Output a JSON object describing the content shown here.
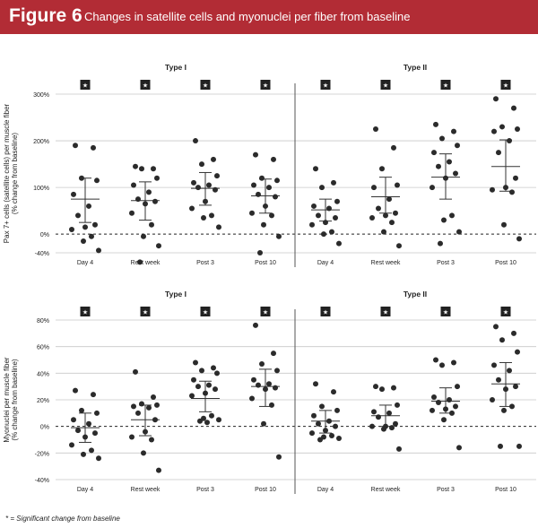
{
  "header": {
    "figure_label": "Figure 6",
    "title": "Changes in satellite cells and myonuclei per fiber from baseline"
  },
  "footnote": "* = Significant change from baseline",
  "colors": {
    "banner": "#b22c35",
    "dots": "#2b2b2b",
    "grid": "#c8c8c8",
    "text": "#222222"
  },
  "chart_data": [
    {
      "type": "scatter",
      "title": "Pax 7+ cells (satellite cells) per muscle fiber",
      "ylabel_line1": "Pax 7+ cells (satellite cells) per muscle fiber",
      "ylabel_line2": "(% change from baseline)",
      "ylim": [
        -40,
        300
      ],
      "yticks": [
        -40,
        0,
        100,
        200,
        300
      ],
      "ytick_labels": [
        "-40%",
        "0%",
        "100%",
        "200%",
        "300%"
      ],
      "group_labels": [
        "Type I",
        "Type II"
      ],
      "categories": [
        "Day 4",
        "Rest week",
        "Post 3",
        "Post 10",
        "Day 4",
        "Rest week",
        "Post 3",
        "Post 10"
      ],
      "significant": [
        true,
        true,
        true,
        true,
        true,
        true,
        true,
        true
      ],
      "star_symbol": "★",
      "means": [
        75,
        72,
        98,
        82,
        52,
        80,
        122,
        145
      ],
      "error_bars": [
        [
          25,
          120
        ],
        [
          30,
          112
        ],
        [
          62,
          132
        ],
        [
          45,
          118
        ],
        [
          28,
          75
        ],
        [
          45,
          122
        ],
        [
          75,
          172
        ],
        [
          92,
          202
        ]
      ],
      "points": [
        [
          190,
          185,
          120,
          115,
          85,
          60,
          40,
          20,
          15,
          10,
          -5,
          -15,
          -35
        ],
        [
          145,
          140,
          140,
          120,
          105,
          90,
          75,
          70,
          65,
          45,
          20,
          -5,
          -25,
          -60
        ],
        [
          200,
          160,
          150,
          125,
          110,
          105,
          100,
          95,
          70,
          55,
          40,
          35,
          15
        ],
        [
          170,
          160,
          120,
          115,
          105,
          100,
          85,
          80,
          60,
          45,
          40,
          20,
          -5,
          -40
        ],
        [
          140,
          110,
          100,
          70,
          60,
          55,
          40,
          35,
          25,
          20,
          5,
          0,
          -20
        ],
        [
          225,
          185,
          140,
          105,
          100,
          75,
          55,
          45,
          40,
          35,
          25,
          5,
          -25
        ],
        [
          235,
          220,
          205,
          190,
          175,
          155,
          145,
          130,
          120,
          100,
          40,
          30,
          5,
          -20
        ],
        [
          290,
          270,
          230,
          225,
          220,
          200,
          175,
          120,
          100,
          95,
          90,
          20,
          -10
        ]
      ]
    },
    {
      "type": "scatter",
      "title": "Myonuclei per muscle fiber",
      "ylabel_line1": "Myonuclei per muscle fiber",
      "ylabel_line2": "(% change from baseline)",
      "ylim": [
        -40,
        80
      ],
      "yticks": [
        -40,
        -20,
        0,
        20,
        40,
        60,
        80
      ],
      "ytick_labels": [
        "-40%",
        "-20%",
        "0%",
        "20%",
        "40%",
        "60%",
        "80%"
      ],
      "group_labels": [
        "Type I",
        "Type II"
      ],
      "categories": [
        "Day 4",
        "Rest week",
        "Post 3",
        "Post 10",
        "Day 4",
        "Rest week",
        "Post 3",
        "Post 10"
      ],
      "significant": [
        true,
        true,
        true,
        true,
        true,
        true,
        true,
        true
      ],
      "star_symbol": "★",
      "means": [
        -1,
        5,
        21,
        30,
        4,
        8,
        19,
        32
      ],
      "error_bars": [
        [
          -12,
          10
        ],
        [
          -7,
          16
        ],
        [
          11,
          34
        ],
        [
          15,
          43
        ],
        [
          -5,
          12
        ],
        [
          0,
          16
        ],
        [
          10,
          29
        ],
        [
          15,
          48
        ]
      ],
      "points": [
        [
          27,
          24,
          12,
          10,
          5,
          2,
          -3,
          -5,
          -8,
          -14,
          -18,
          -21,
          -24
        ],
        [
          41,
          22,
          17,
          16,
          15,
          14,
          10,
          5,
          -4,
          -8,
          -10,
          -20,
          -33
        ],
        [
          48,
          44,
          42,
          40,
          35,
          31,
          30,
          28,
          25,
          23,
          8,
          6,
          5,
          4,
          3
        ],
        [
          76,
          55,
          47,
          42,
          35,
          32,
          31,
          29,
          28,
          21,
          16,
          2,
          -23
        ],
        [
          32,
          26,
          15,
          12,
          8,
          4,
          2,
          0,
          -3,
          -5,
          -7,
          -8,
          -9,
          -10
        ],
        [
          30,
          29,
          28,
          16,
          11,
          10,
          7,
          2,
          0,
          0,
          -1,
          -2,
          -17
        ],
        [
          50,
          48,
          46,
          30,
          22,
          20,
          18,
          15,
          13,
          12,
          10,
          5,
          -16
        ],
        [
          75,
          70,
          65,
          56,
          46,
          42,
          35,
          30,
          28,
          20,
          15,
          12,
          -15,
          -15
        ]
      ]
    }
  ]
}
